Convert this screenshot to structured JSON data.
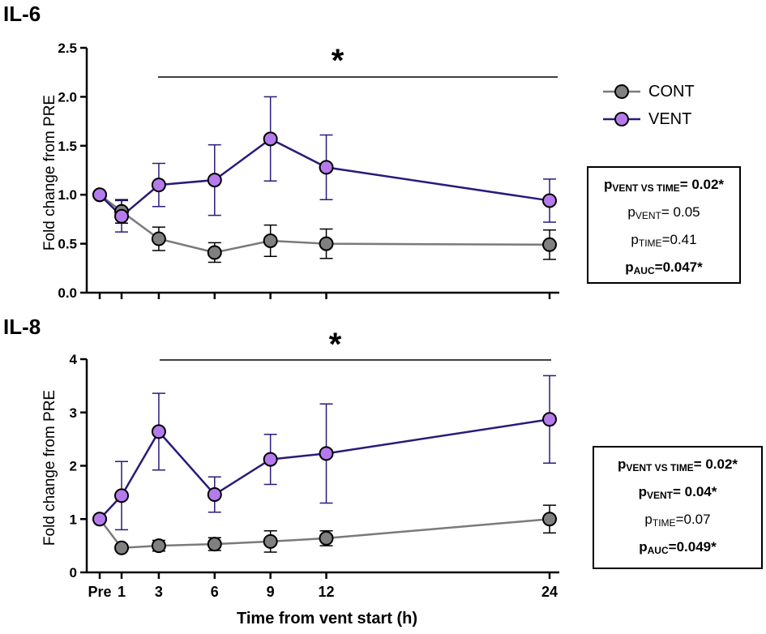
{
  "chart_data": [
    {
      "type": "line",
      "title": "IL-6",
      "ylabel": "Fold change from PRE",
      "xlabel": "",
      "x_ticks": [
        "Pre",
        "1",
        "3",
        "6",
        "9",
        "12",
        "24"
      ],
      "y_ticks": [
        "0.0",
        "0.5",
        "1.0",
        "1.5",
        "2.0",
        "2.5"
      ],
      "ylim": [
        0,
        2.5
      ],
      "significance": "*",
      "series": [
        {
          "name": "CONT",
          "x": [
            0,
            1,
            3,
            6,
            9,
            12,
            24
          ],
          "values": [
            1.0,
            0.83,
            0.55,
            0.41,
            0.53,
            0.5,
            0.49
          ],
          "err": [
            0,
            0.12,
            0.12,
            0.1,
            0.16,
            0.15,
            0.15
          ]
        },
        {
          "name": "VENT",
          "x": [
            0,
            1,
            3,
            6,
            9,
            12,
            24
          ],
          "values": [
            1.0,
            0.78,
            1.1,
            1.15,
            1.57,
            1.28,
            0.94
          ],
          "err": [
            0,
            0.16,
            0.22,
            0.36,
            0.43,
            0.33,
            0.22
          ]
        }
      ],
      "stats": [
        {
          "p": "p",
          "sub": "VENT VS TIME",
          "val": "= 0.02*",
          "bold": true
        },
        {
          "p": "p",
          "sub": "VENT",
          "val": "= 0.05",
          "bold": false
        },
        {
          "p": "p",
          "sub": "TIME",
          "val": "=0.41",
          "bold": false
        },
        {
          "p": "p",
          "sub": "AUC",
          "val": "=0.047*",
          "bold": true
        }
      ]
    },
    {
      "type": "line",
      "title": "IL-8",
      "ylabel": "Fold change from PRE",
      "xlabel": "Time from vent start (h)",
      "x_ticks": [
        "Pre",
        "1",
        "3",
        "6",
        "9",
        "12",
        "24"
      ],
      "y_ticks": [
        "0",
        "1",
        "2",
        "3",
        "4"
      ],
      "ylim": [
        0,
        4
      ],
      "significance": "*",
      "series": [
        {
          "name": "CONT",
          "x": [
            0,
            1,
            3,
            6,
            9,
            12,
            24
          ],
          "values": [
            1.0,
            0.46,
            0.5,
            0.53,
            0.58,
            0.64,
            1.0
          ],
          "err": [
            0,
            0.05,
            0.1,
            0.12,
            0.2,
            0.14,
            0.26
          ]
        },
        {
          "name": "VENT",
          "x": [
            0,
            1,
            3,
            6,
            9,
            12,
            24
          ],
          "values": [
            1.0,
            1.44,
            2.64,
            1.46,
            2.12,
            2.23,
            2.87
          ],
          "err": [
            0,
            0.64,
            0.72,
            0.33,
            0.47,
            0.93,
            0.82
          ]
        }
      ],
      "stats": [
        {
          "p": "p",
          "sub": "VENT VS TIME",
          "val": "= 0.02*",
          "bold": true
        },
        {
          "p": "p",
          "sub": "VENT",
          "val": "= 0.04*",
          "bold": true
        },
        {
          "p": "p",
          "sub": "TIME",
          "val": "=0.07",
          "bold": false
        },
        {
          "p": "p",
          "sub": "AUC",
          "val": "=0.049*",
          "bold": true
        }
      ]
    }
  ],
  "legend": [
    {
      "name": "CONT",
      "color": "#7a7a7a",
      "marker": "#808080"
    },
    {
      "name": "VENT",
      "color": "#2b1a7a",
      "marker": "#b57bec"
    }
  ],
  "colors": {
    "cont_line": "#7a7a7a",
    "cont_marker": "#808080",
    "vent_line": "#2b1a7a",
    "vent_marker": "#b57bec",
    "vent_err": "#2b1a7a"
  }
}
